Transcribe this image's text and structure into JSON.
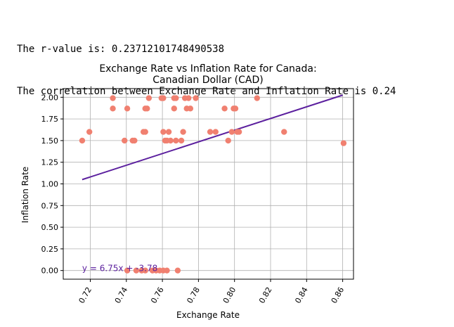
{
  "output": {
    "lines": [
      "The r-value is: 0.23712101748490538",
      "The correlation between Exchange Rate and Inflation Rate is 0.24"
    ]
  },
  "chart_data": {
    "type": "scatter",
    "title": "Exchange Rate vs Inflation Rate for Canada:\nCanadian Dollar (CAD)",
    "xlabel": "Exchange Rate",
    "ylabel": "Inflation Rate",
    "xlim": [
      0.705,
      0.866
    ],
    "ylim": [
      -0.1,
      2.1
    ],
    "xticks": [
      0.72,
      0.74,
      0.76,
      0.78,
      0.8,
      0.82,
      0.84,
      0.86
    ],
    "xtick_labels": [
      "0.72",
      "0.74",
      "0.76",
      "0.78",
      "0.80",
      "0.82",
      "0.84",
      "0.86"
    ],
    "yticks": [
      0.0,
      0.25,
      0.5,
      0.75,
      1.0,
      1.25,
      1.5,
      1.75,
      2.0
    ],
    "ytick_labels": [
      "0.00",
      "0.25",
      "0.50",
      "0.75",
      "1.00",
      "1.25",
      "1.50",
      "1.75",
      "2.00"
    ],
    "grid": true,
    "point_color": "#f08070",
    "line_color": "#5b1f9e",
    "annotation": "y = 6.75x + -3.78",
    "regression": {
      "slope": 6.75,
      "intercept": -3.78,
      "x_range": [
        0.7155,
        0.86
      ]
    },
    "points": [
      [
        0.7155,
        1.5
      ],
      [
        0.7195,
        1.6
      ],
      [
        0.7325,
        1.99
      ],
      [
        0.7325,
        1.87
      ],
      [
        0.739,
        1.5
      ],
      [
        0.7405,
        1.87
      ],
      [
        0.7435,
        1.5
      ],
      [
        0.7445,
        1.5
      ],
      [
        0.7495,
        1.6
      ],
      [
        0.7505,
        1.6
      ],
      [
        0.7505,
        1.87
      ],
      [
        0.7515,
        1.87
      ],
      [
        0.7525,
        1.99
      ],
      [
        0.7595,
        1.99
      ],
      [
        0.7605,
        1.99
      ],
      [
        0.7605,
        1.6
      ],
      [
        0.7615,
        1.5
      ],
      [
        0.7625,
        1.5
      ],
      [
        0.7635,
        1.6
      ],
      [
        0.7645,
        1.5
      ],
      [
        0.7665,
        1.87
      ],
      [
        0.7665,
        1.99
      ],
      [
        0.7675,
        1.99
      ],
      [
        0.7675,
        1.5
      ],
      [
        0.7705,
        1.5
      ],
      [
        0.7715,
        1.6
      ],
      [
        0.7725,
        1.99
      ],
      [
        0.7735,
        1.87
      ],
      [
        0.7745,
        1.99
      ],
      [
        0.7755,
        1.87
      ],
      [
        0.7785,
        1.99
      ],
      [
        0.7865,
        1.6
      ],
      [
        0.7895,
        1.6
      ],
      [
        0.7945,
        1.87
      ],
      [
        0.7965,
        1.5
      ],
      [
        0.7985,
        1.6
      ],
      [
        0.7995,
        1.87
      ],
      [
        0.8005,
        1.87
      ],
      [
        0.8015,
        1.6
      ],
      [
        0.8025,
        1.6
      ],
      [
        0.8125,
        1.99
      ],
      [
        0.8275,
        1.6
      ],
      [
        0.8605,
        1.47
      ],
      [
        0.7405,
        0.0
      ],
      [
        0.7455,
        0.0
      ],
      [
        0.7485,
        0.0
      ],
      [
        0.7505,
        0.0
      ],
      [
        0.7545,
        0.0
      ],
      [
        0.7565,
        0.0
      ],
      [
        0.7585,
        0.0
      ],
      [
        0.7605,
        0.0
      ],
      [
        0.7625,
        0.0
      ],
      [
        0.7685,
        0.0
      ]
    ]
  }
}
